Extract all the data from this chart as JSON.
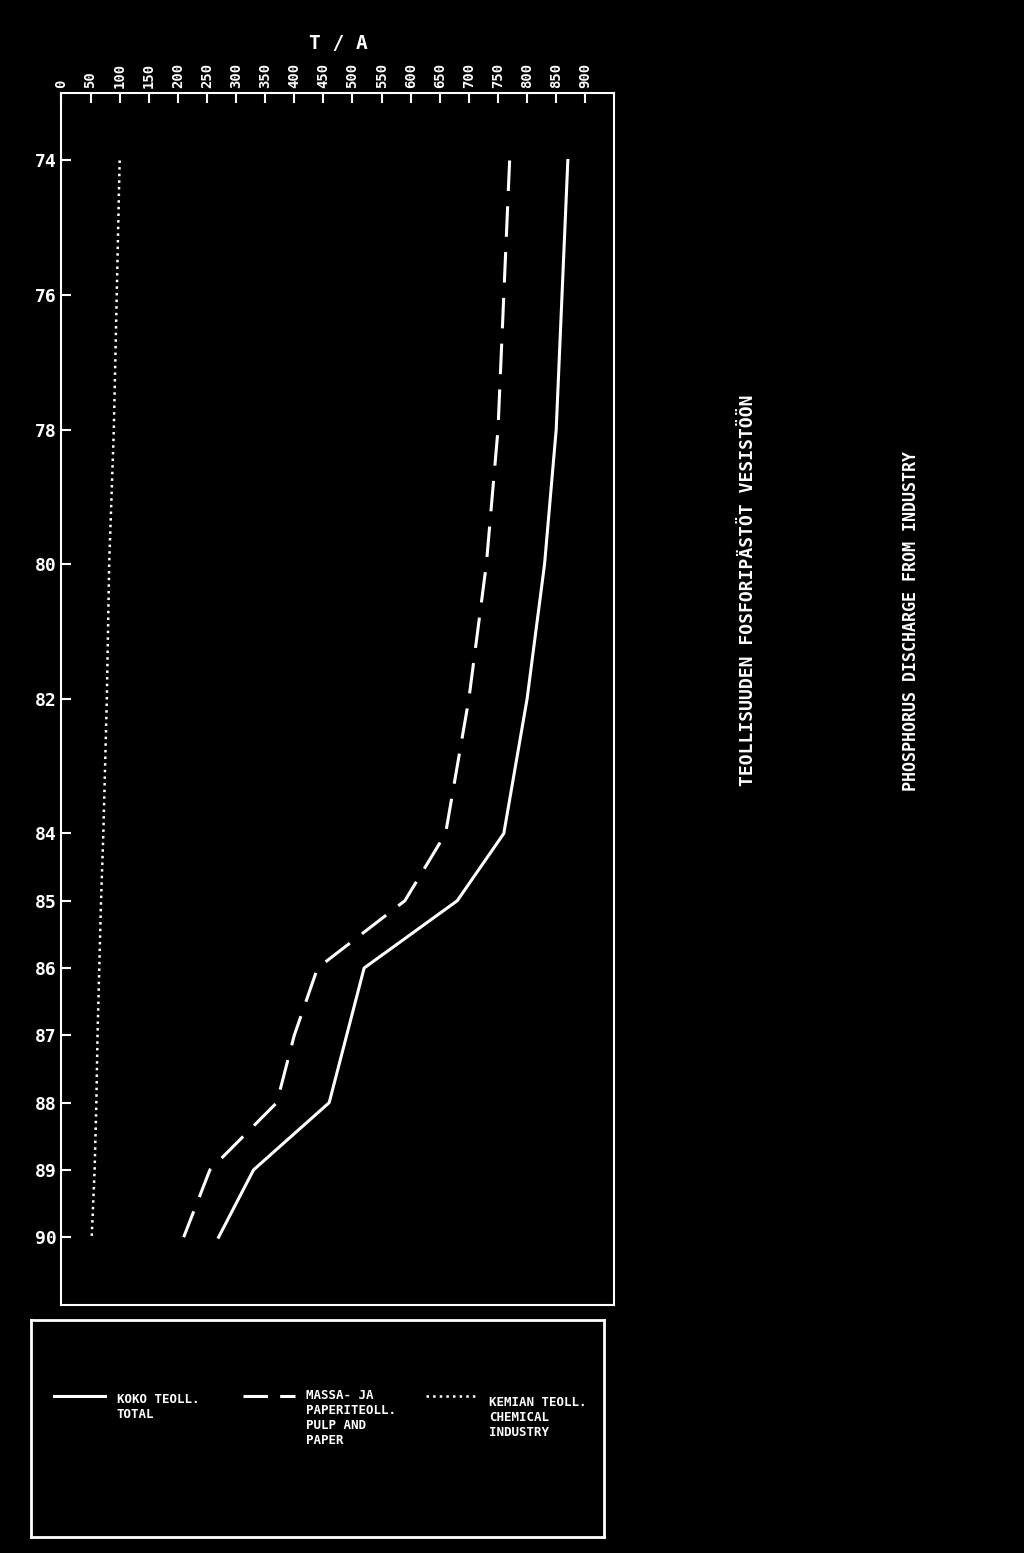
{
  "title1": "TEOLLISUUDEN FOSFORIPÄSTÖT VESISTÖÖN",
  "title2": "PHOSPHORUS DISCHARGE FROM INDUSTRY",
  "ylabel": "T / A",
  "years": [
    74,
    76,
    78,
    80,
    82,
    84,
    85,
    86,
    87,
    88,
    89,
    90
  ],
  "total_line": [
    870,
    860,
    850,
    830,
    800,
    760,
    680,
    520,
    490,
    460,
    330,
    270
  ],
  "pulp_line": [
    770,
    760,
    750,
    730,
    700,
    660,
    590,
    440,
    400,
    370,
    255,
    210
  ],
  "chem_line": [
    100,
    95,
    90,
    82,
    78,
    72,
    68,
    65,
    62,
    60,
    57,
    52
  ],
  "x_ticks": [
    74,
    76,
    78,
    80,
    82,
    84,
    85,
    86,
    87,
    88,
    89,
    90
  ],
  "y_ticks": [
    0,
    50,
    100,
    150,
    200,
    250,
    300,
    350,
    400,
    450,
    500,
    550,
    600,
    650,
    700,
    750,
    800,
    850,
    900
  ],
  "ylim": [
    0,
    950
  ],
  "background_color": "#000000",
  "foreground_color": "#ffffff"
}
